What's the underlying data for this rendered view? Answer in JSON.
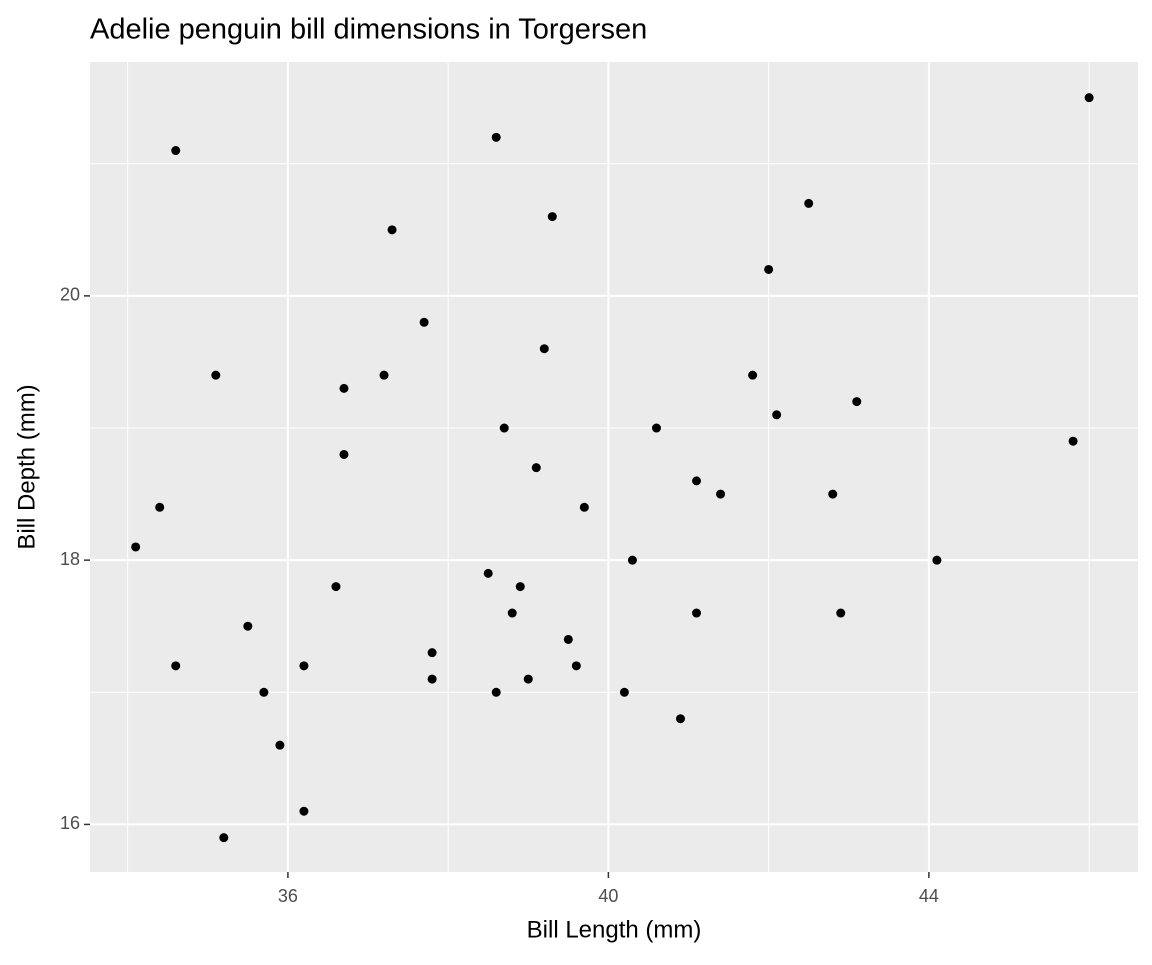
{
  "chart_data": {
    "type": "scatter",
    "title": "Adelie penguin bill dimensions in Torgersen",
    "x_label": "Bill Length (mm)",
    "y_label": "Bill Depth (mm)",
    "x": [
      46.0,
      34.6,
      38.6,
      39.3,
      42.5,
      37.3,
      42.0,
      37.7,
      39.2,
      35.1,
      37.2,
      36.7,
      41.8,
      42.1,
      43.1,
      38.7,
      40.6,
      45.8,
      36.7,
      39.1,
      41.1,
      41.4,
      42.8,
      34.4,
      39.7,
      34.1,
      40.3,
      44.1,
      38.5,
      36.6,
      38.9,
      38.8,
      41.1,
      42.9,
      35.5,
      39.5,
      37.8,
      34.6,
      36.2,
      39.6,
      37.8,
      39.0,
      35.7,
      38.6,
      40.2,
      40.9,
      35.9,
      36.2,
      35.2
    ],
    "values": [
      21.5,
      21.1,
      21.2,
      20.6,
      20.7,
      20.5,
      20.2,
      19.8,
      19.6,
      19.4,
      19.4,
      19.3,
      19.4,
      19.1,
      19.2,
      19.0,
      19.0,
      18.9,
      18.8,
      18.7,
      18.6,
      18.5,
      18.5,
      18.4,
      18.4,
      18.1,
      18.0,
      18.0,
      17.9,
      17.8,
      17.8,
      17.6,
      17.6,
      17.6,
      17.5,
      17.4,
      17.3,
      17.2,
      17.2,
      17.2,
      17.1,
      17.1,
      17.0,
      17.0,
      17.0,
      16.8,
      16.6,
      16.1,
      15.9
    ],
    "color": "#000000",
    "xlim": [
      33.53,
      46.61
    ],
    "xticks": [
      36,
      40,
      44
    ],
    "ylim": [
      15.64,
      21.77
    ],
    "yticks": [
      16,
      18,
      20
    ],
    "grid": true
  }
}
